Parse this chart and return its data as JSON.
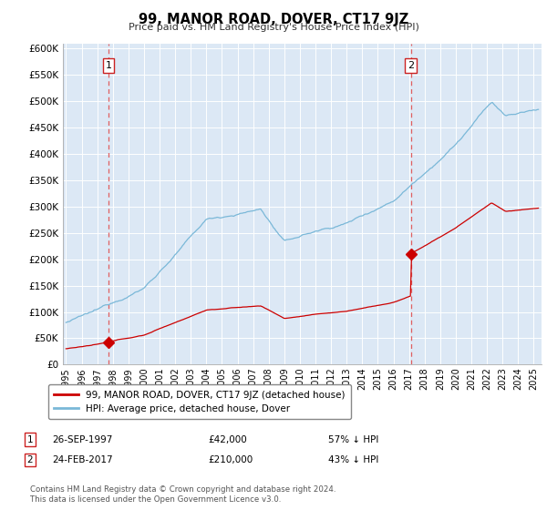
{
  "title": "99, MANOR ROAD, DOVER, CT17 9JZ",
  "subtitle": "Price paid vs. HM Land Registry's House Price Index (HPI)",
  "ylabel_ticks": [
    "£0",
    "£50K",
    "£100K",
    "£150K",
    "£200K",
    "£250K",
    "£300K",
    "£350K",
    "£400K",
    "£450K",
    "£500K",
    "£550K",
    "£600K"
  ],
  "ytick_values": [
    0,
    50000,
    100000,
    150000,
    200000,
    250000,
    300000,
    350000,
    400000,
    450000,
    500000,
    550000,
    600000
  ],
  "ylim": [
    0,
    610000
  ],
  "xlim_start": 1994.8,
  "xlim_end": 2025.5,
  "hpi_color": "#7ab8d8",
  "price_color": "#cc0000",
  "dashed_color": "#e06060",
  "purchase1_year": 1997.73,
  "purchase1_price": 42000,
  "purchase2_year": 2017.12,
  "purchase2_price": 210000,
  "legend_label1": "99, MANOR ROAD, DOVER, CT17 9JZ (detached house)",
  "legend_label2": "HPI: Average price, detached house, Dover",
  "annotation1_label": "1",
  "annotation2_label": "2",
  "ann1_text": "26-SEP-1997",
  "ann1_price": "£42,000",
  "ann1_hpi": "57% ↓ HPI",
  "ann2_text": "24-FEB-2017",
  "ann2_price": "£210,000",
  "ann2_hpi": "43% ↓ HPI",
  "footer": "Contains HM Land Registry data © Crown copyright and database right 2024.\nThis data is licensed under the Open Government Licence v3.0.",
  "background_color": "#dce8f5",
  "grid_color": "#ffffff"
}
